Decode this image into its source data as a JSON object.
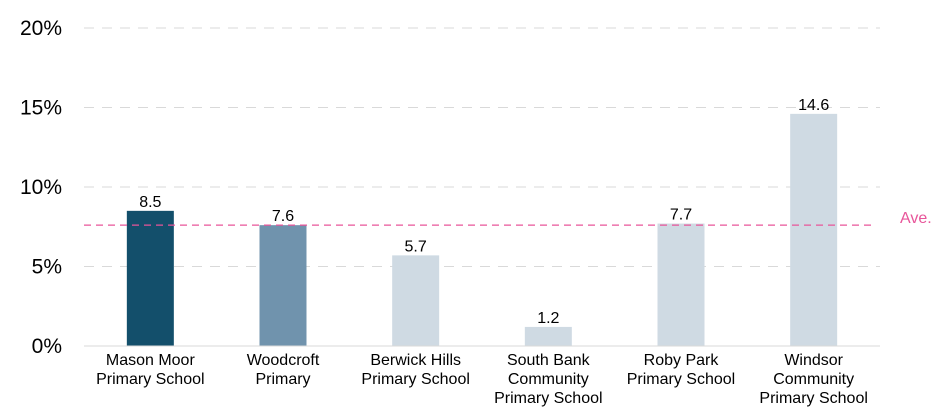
{
  "chart_data": {
    "type": "bar",
    "categories": [
      [
        "Mason Moor",
        "Primary School"
      ],
      [
        "Woodcroft",
        "Primary"
      ],
      [
        "Berwick Hills",
        "Primary School"
      ],
      [
        "South Bank",
        "Community",
        "Primary School"
      ],
      [
        "Roby Park",
        "Primary School"
      ],
      [
        "Windsor",
        "Community",
        "Primary School"
      ]
    ],
    "values": [
      8.5,
      7.6,
      5.7,
      1.2,
      7.7,
      14.6
    ],
    "value_labels": [
      "8.5",
      "7.6",
      "5.7",
      "1.2",
      "7.7",
      "14.6"
    ],
    "bar_colors": [
      "#134f6b",
      "#7093ad",
      "#cfdae3",
      "#cfdae3",
      "#cfdae3",
      "#cfdae3"
    ],
    "ylim": [
      0,
      20
    ],
    "yticks": [
      0,
      5,
      10,
      15,
      20
    ],
    "ytick_labels": [
      "0%",
      "5%",
      "10%",
      "15%",
      "20%"
    ],
    "grid": true,
    "average": {
      "value": 7.6,
      "label": "Ave.",
      "color": "#e8559a"
    }
  }
}
